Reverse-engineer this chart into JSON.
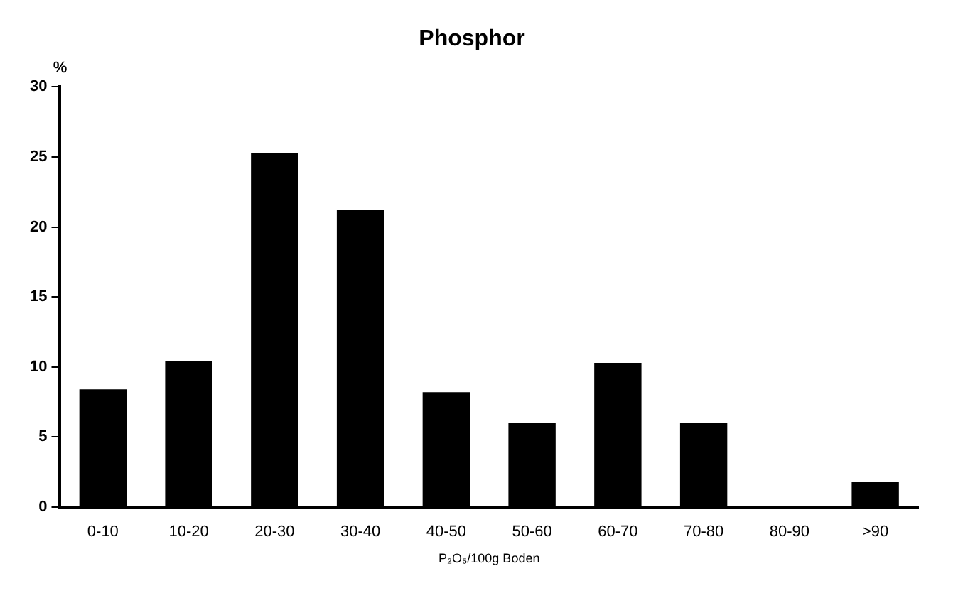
{
  "chart_data": {
    "type": "bar",
    "title": "Phosphor",
    "xlabel": "P₂O₅/100g Boden",
    "ylabel": "%",
    "categories": [
      "0-10",
      "10-20",
      "20-30",
      "30-40",
      "40-50",
      "50-60",
      "60-70",
      "70-80",
      "80-90",
      ">90"
    ],
    "values": [
      8.4,
      10.4,
      25.3,
      21.2,
      8.2,
      6,
      10.3,
      6,
      0,
      1.8
    ],
    "color": "#000000",
    "ylim": [
      0,
      30
    ],
    "yticks": [
      0,
      5,
      10,
      15,
      20,
      25,
      30
    ],
    "grid": false,
    "legend": false
  }
}
